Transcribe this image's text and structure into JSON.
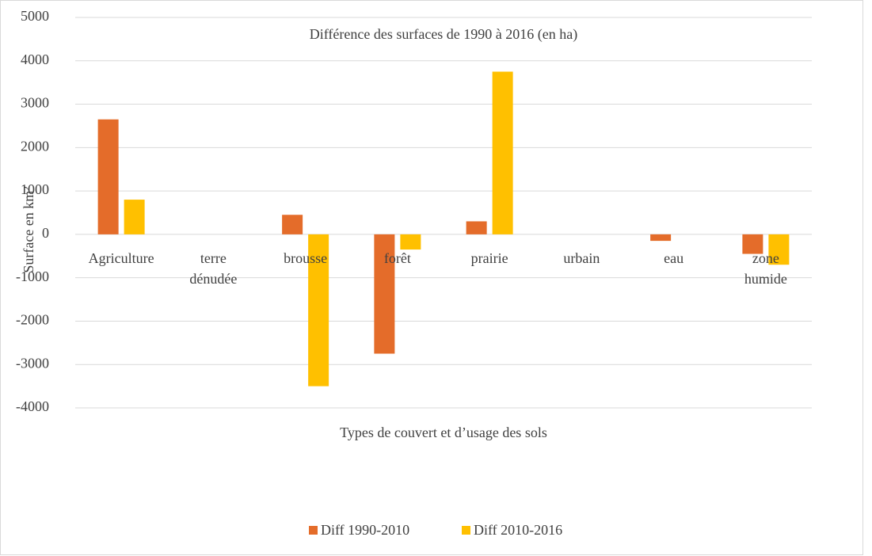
{
  "chart_data": {
    "type": "bar",
    "title": "Différence des surfaces de 1990 à 2016 (en ha)",
    "x_label": "Types de couvert et d’usage des sols",
    "y_label": "Surface en km²",
    "categories": [
      "Agriculture",
      "terre dénudée",
      "brousse",
      "forêt",
      "prairie",
      "urbain",
      "eau",
      "zone humide"
    ],
    "series": [
      {
        "name": "Diff 1990-2010",
        "color": "#e46c2a",
        "values": [
          2650,
          0,
          450,
          -2750,
          300,
          0,
          -150,
          -450
        ]
      },
      {
        "name": "Diff 2010-2016",
        "color": "#ffc000",
        "values": [
          800,
          0,
          -3500,
          -350,
          3750,
          0,
          0,
          -700
        ]
      }
    ],
    "ylim": [
      -4000,
      5000
    ],
    "yticks": [
      -4000,
      -3000,
      -2000,
      -1000,
      0,
      1000,
      2000,
      3000,
      4000,
      5000
    ],
    "grid": true,
    "legend": "bottom"
  }
}
